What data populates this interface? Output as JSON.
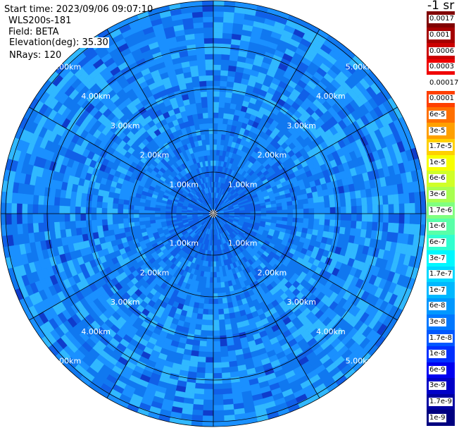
{
  "header": {
    "start_time": "Start time: 2023/09/06 09:07:10",
    "instrument": "WLS200s-181",
    "field": "Field: BETA",
    "elevation": "Elevation(deg): 35.30",
    "nrays": "NRays: 120"
  },
  "unit": "-1 sr",
  "range_rings": [
    "1.00km",
    "2.00km",
    "3.00km",
    "4.00km",
    "5.00km"
  ],
  "colorbar": {
    "labels": [
      "0.0017",
      "0.001",
      "0.0006",
      "0.0003",
      "0.00017",
      "0.0001",
      "6e-5",
      "3e-5",
      "1.7e-5",
      "1e-5",
      "6e-6",
      "3e-6",
      "1.7e-6",
      "1e-6",
      "6e-7",
      "3e-7",
      "1.7e-7",
      "1e-7",
      "6e-8",
      "3e-8",
      "1.7e-8",
      "1e-8",
      "6e-9",
      "3e-9",
      "1.7e-9",
      "1e-9"
    ],
    "colors": [
      "#800000",
      "#a50000",
      "#cc0000",
      "#f00000",
      "#ffffff",
      "#ff4000",
      "#ff7000",
      "#ffa000",
      "#ffd000",
      "#f8ff00",
      "#d0ff28",
      "#a8ff50",
      "#80ff80",
      "#58ffa8",
      "#30ffd0",
      "#00f8ff",
      "#00d8ff",
      "#00b8ff",
      "#0098ff",
      "#0078ff",
      "#0058ff",
      "#0030ff",
      "#0000f0",
      "#0000c8",
      "#0000a0",
      "#000080"
    ]
  },
  "colors": {
    "field_light": "#1a90ff",
    "field_mid": "#1078f0",
    "field_dark": "#1060e8",
    "field_cyan": "#30b8ff",
    "field_deep": "#0f3ccc",
    "grid": "#000000"
  }
}
